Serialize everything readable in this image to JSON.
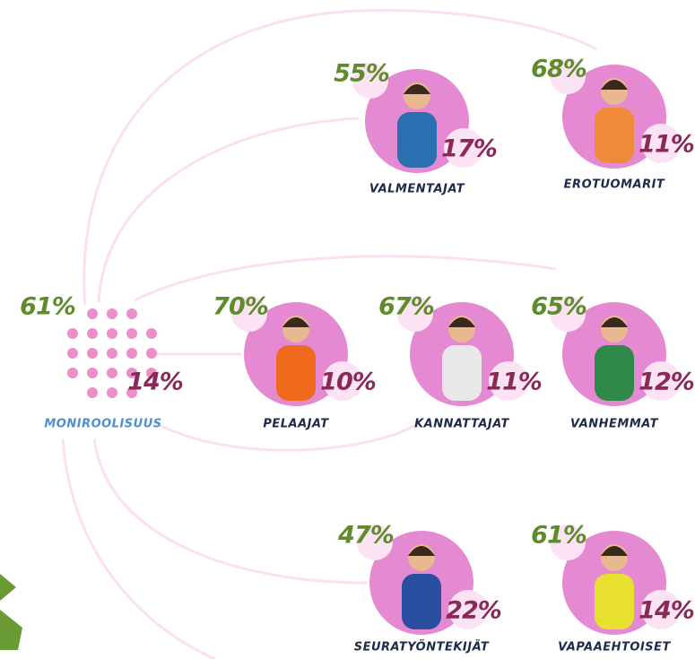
{
  "nodes": [
    {
      "label": "MONIROOLISUUS",
      "top": "61%",
      "bottom": "14%"
    },
    {
      "label": "VALMENTAJAT",
      "top": "55%",
      "bottom": "17%"
    },
    {
      "label": "EROTUOMARIT",
      "top": "68%",
      "bottom": "11%"
    },
    {
      "label": "PELAAJAT",
      "top": "70%",
      "bottom": "10%"
    },
    {
      "label": "KANNATTAJAT",
      "top": "67%",
      "bottom": "11%"
    },
    {
      "label": "VANHEMMAT",
      "top": "65%",
      "bottom": "12%"
    },
    {
      "label": "SEURATYÖNTEKIJÄT",
      "top": "47%",
      "bottom": "22%"
    },
    {
      "label": "VAPAAEHTOISET",
      "top": "61%",
      "bottom": "14%"
    }
  ]
}
